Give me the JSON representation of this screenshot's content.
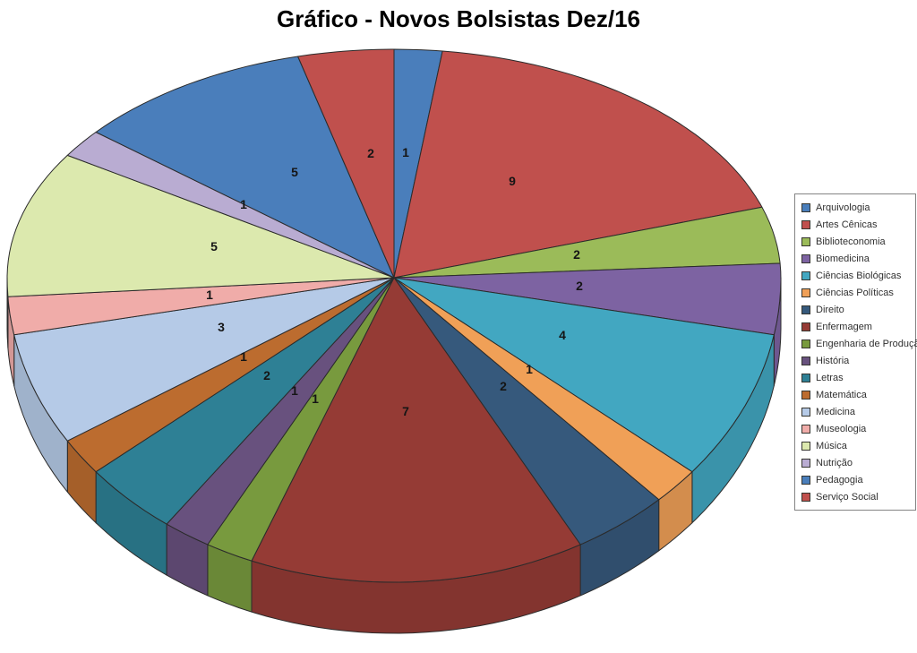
{
  "page": {
    "background": "#FFFFFF"
  },
  "chart_data": {
    "type": "pie",
    "projection": "3d",
    "title": "Gráfico - Novos Bolsistas Dez/16",
    "legend_position": "right",
    "data_labels": "value",
    "start_angle_deg": 0,
    "direction": "clockwise",
    "total": 50,
    "categories": [
      "Arquivologia",
      "Artes Cênicas",
      "Biblioteconomia",
      "Biomedicina",
      "Ciências Biológicas",
      "Ciências Políticas",
      "Direito",
      "Enfermagem",
      "Engenharia de Produção",
      "História",
      "Letras",
      "Matemática",
      "Medicina",
      "Museologia",
      "Música",
      "Nutrição",
      "Pedagogia",
      "Serviço Social"
    ],
    "values": [
      1,
      9,
      2,
      2,
      4,
      1,
      2,
      7,
      1,
      1,
      2,
      1,
      3,
      1,
      5,
      1,
      5,
      2
    ],
    "colors": [
      "#4A7EBB",
      "#C0504D",
      "#9BBB59",
      "#7D63A2",
      "#42A7C1",
      "#F0A057",
      "#36597C",
      "#953B35",
      "#789A3E",
      "#68517E",
      "#2E8095",
      "#BC6C2F",
      "#B5CAE7",
      "#F0ACA9",
      "#DCE9AE",
      "#B9ACD2",
      "#4A7EBB",
      "#C0504D"
    ],
    "outline_color": "#2b2b2b"
  }
}
